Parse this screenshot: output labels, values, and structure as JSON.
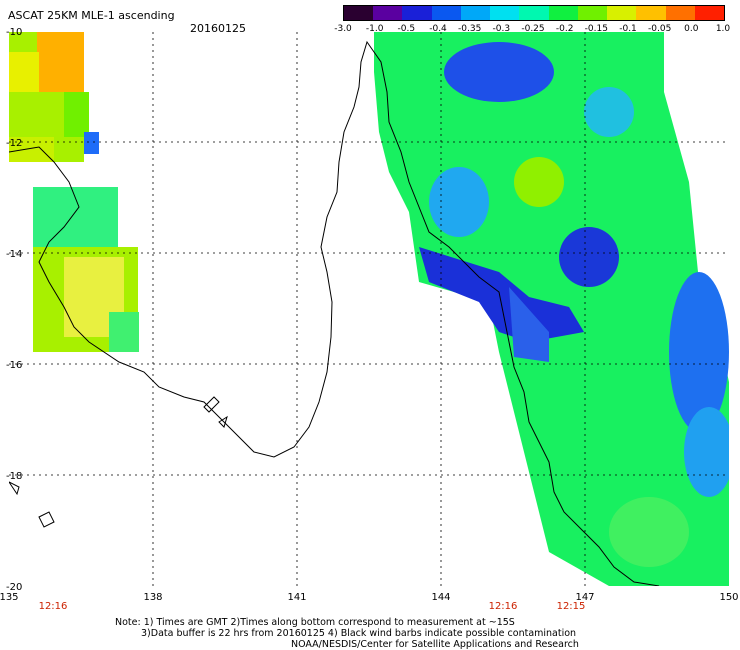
{
  "title": "ASCAT 25KM MLE-1 ascending",
  "date": "20160125",
  "colorbar": {
    "labels": [
      "-3.0",
      "-1.0",
      "-0.5",
      "-0.4",
      "-0.35",
      "-0.3",
      "-0.25",
      "-0.2",
      "-0.15",
      "-0.1",
      "-0.05",
      "0.0",
      "1.0"
    ],
    "colors": [
      "#2a0030",
      "#5a00a0",
      "#1a20d8",
      "#0a58f0",
      "#00a8f8",
      "#00e0f0",
      "#00f8b0",
      "#10f040",
      "#70f000",
      "#d8f000",
      "#ffc000",
      "#ff7000",
      "#ff2000"
    ]
  },
  "lat_labels": [
    "-10",
    "-12",
    "-14",
    "-16",
    "-18",
    "-20"
  ],
  "lon_labels": [
    "135",
    "138",
    "141",
    "144",
    "147",
    "150"
  ],
  "time_labels": [
    "12:16",
    "12:16",
    "12:15"
  ],
  "notes": [
    "Note: 1) Times are GMT  2)Times along bottom correspond to measurement at ~15S",
    "3)Data buffer is 22 hrs from 20160125  4) Black wind barbs indicate possible contamination",
    "NOAA/NESDIS/Center for Satellite Applications and Research"
  ]
}
